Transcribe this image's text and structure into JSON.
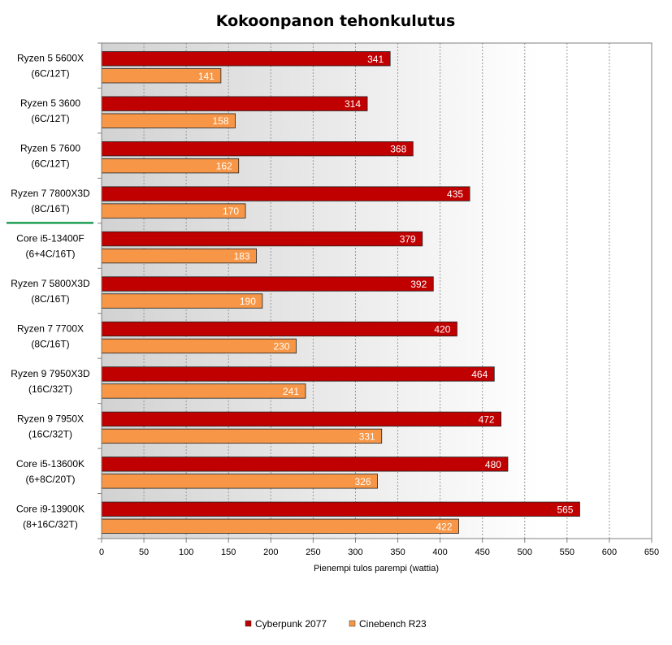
{
  "chart_data": {
    "type": "bar",
    "orientation": "horizontal",
    "title": "Kokoonpanon tehonkulutus",
    "xlabel": "Pienempi tulos parempi (wattia)",
    "ylabel": "",
    "xlim": [
      0,
      650
    ],
    "x_ticks": [
      0,
      50,
      100,
      150,
      200,
      250,
      300,
      350,
      400,
      450,
      500,
      550,
      600,
      650
    ],
    "grid": true,
    "legend_position": "bottom",
    "categories": [
      {
        "name": "Ryzen 5 5600X",
        "config": "(6C/12T)"
      },
      {
        "name": "Ryzen 5 3600",
        "config": "(6C/12T)"
      },
      {
        "name": "Ryzen 5 7600",
        "config": "(6C/12T)"
      },
      {
        "name": "Ryzen 7 7800X3D",
        "config": "(8C/16T)",
        "highlight": true
      },
      {
        "name": "Core i5-13400F",
        "config": "(6+4C/16T)"
      },
      {
        "name": "Ryzen 7 5800X3D",
        "config": "(8C/16T)"
      },
      {
        "name": "Ryzen 7 7700X",
        "config": "(8C/16T)"
      },
      {
        "name": "Ryzen 9 7950X3D",
        "config": "(16C/32T)"
      },
      {
        "name": "Ryzen 9 7950X",
        "config": "(16C/32T)"
      },
      {
        "name": "Core i5-13600K",
        "config": "(6+8C/20T)"
      },
      {
        "name": "Core i9-13900K",
        "config": "(8+16C/32T)"
      }
    ],
    "series": [
      {
        "name": "Cyberpunk 2077",
        "color": "#c00000",
        "values": [
          341,
          314,
          368,
          435,
          379,
          392,
          420,
          464,
          472,
          480,
          565
        ]
      },
      {
        "name": "Cinebench R23",
        "color": "#f79646",
        "values": [
          141,
          158,
          162,
          170,
          183,
          190,
          230,
          241,
          331,
          326,
          422
        ]
      }
    ],
    "highlight_color": "#1e9e55"
  }
}
